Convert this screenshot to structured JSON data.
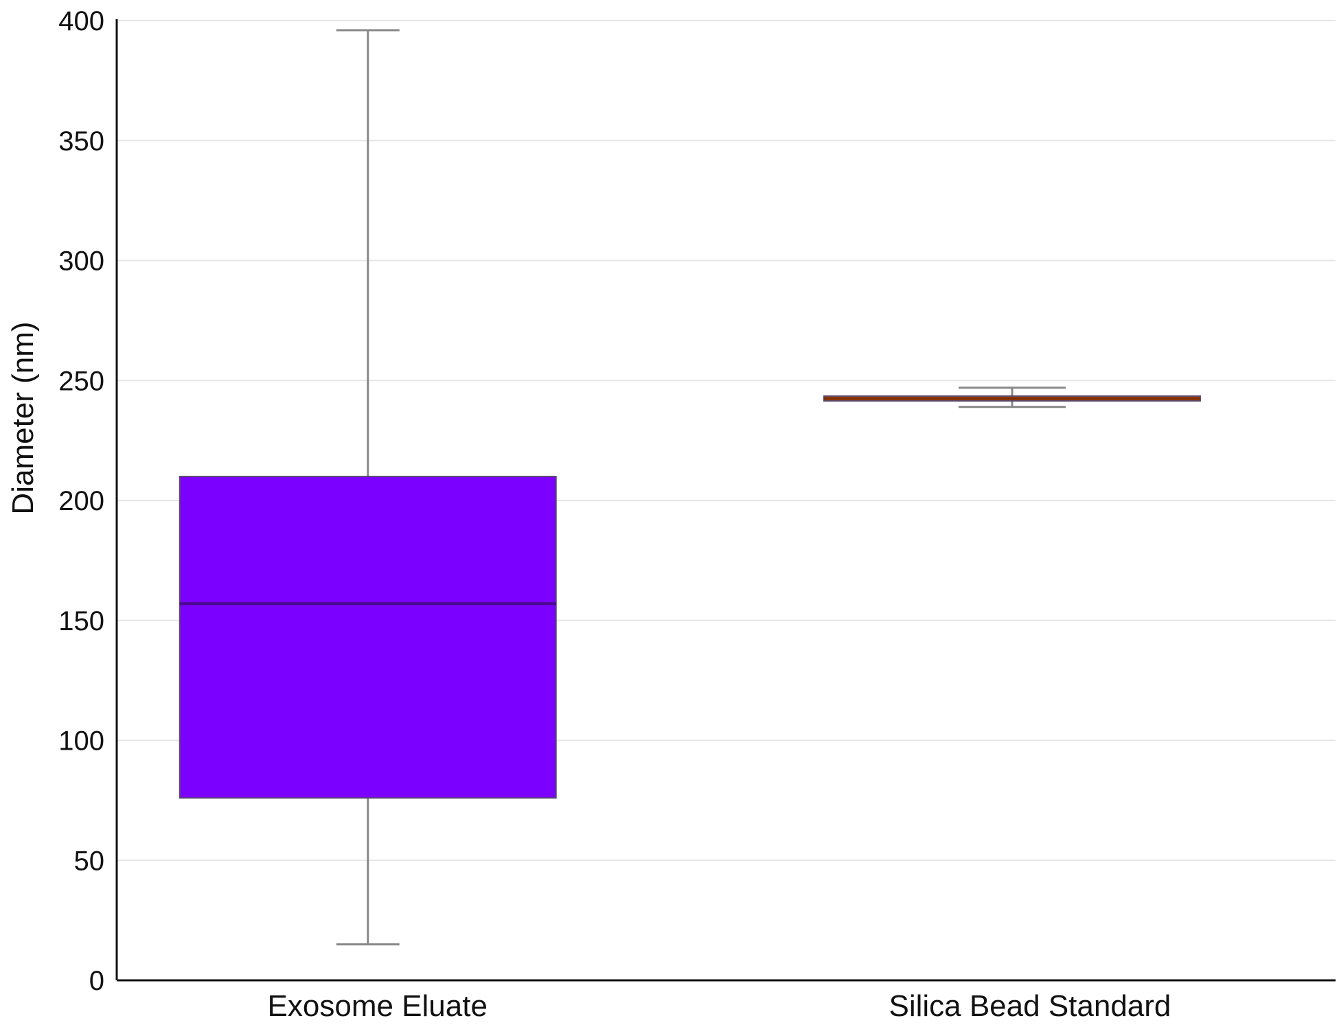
{
  "chart_data": {
    "type": "box",
    "title": "",
    "xlabel": "",
    "ylabel": "Diameter (nm)",
    "ylim": [
      0,
      400
    ],
    "yticks": [
      0,
      50,
      100,
      150,
      200,
      250,
      300,
      350,
      400
    ],
    "grid": true,
    "categories": [
      "Exosome Eluate",
      "Silica Bead Standard"
    ],
    "boxes": [
      {
        "whisker_low": 15,
        "q1": 76,
        "median": 157,
        "q3": 210,
        "whisker_high": 396,
        "color": "#7b00ff",
        "median_color": "#4b0b8c"
      },
      {
        "whisker_low": 239,
        "q1": 241.5,
        "median": 242.5,
        "q3": 243.5,
        "whisker_high": 247,
        "color": "#d4520a",
        "median_color": "#7a2c05"
      }
    ],
    "colors": {
      "axis": "#111111",
      "grid": "#e6e6e6",
      "whisker": "#888888"
    }
  }
}
